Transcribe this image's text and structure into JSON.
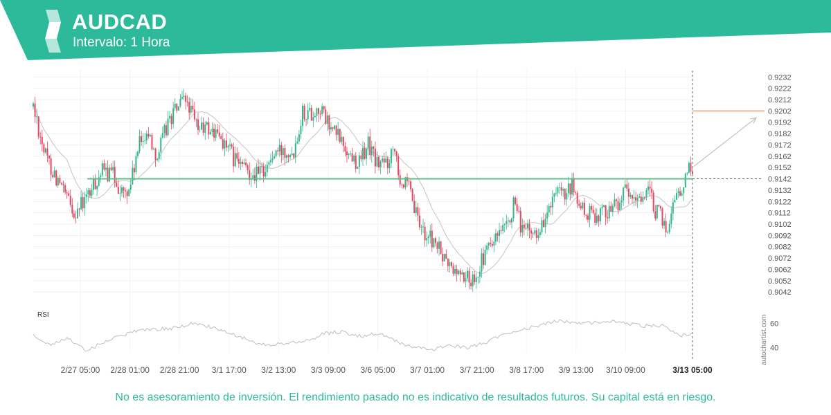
{
  "header": {
    "title": "AUDCAD",
    "interval": "Intervalo: 1 Hora",
    "band_color": "#2cba9a"
  },
  "chart_data": {
    "type": "candlestick",
    "symbol": "AUDCAD",
    "x_tick_labels": [
      "2/27 05:00",
      "2/28 01:00",
      "2/28 21:00",
      "3/1 17:00",
      "3/2 13:00",
      "3/3 09:00",
      "3/6 05:00",
      "3/7 01:00",
      "3/7 21:00",
      "3/8 17:00",
      "3/9 13:00",
      "3/10 09:00",
      "3/13 05:00"
    ],
    "current_time_label": "3/13 05:00",
    "y_tick_labels": [
      "0.9232",
      "0.9222",
      "0.9212",
      "0.9202",
      "0.9192",
      "0.9182",
      "0.9172",
      "0.9162",
      "0.9152",
      "0.9142",
      "0.9132",
      "0.9122",
      "0.9112",
      "0.9102",
      "0.9092",
      "0.9082",
      "0.9072",
      "0.9062",
      "0.9052",
      "0.9042"
    ],
    "ylim": [
      0.9036,
      0.9234
    ],
    "support_level": 0.9142,
    "target_level": 0.9202,
    "price_anchors": [
      [
        0,
        0.9206
      ],
      [
        7,
        0.9162
      ],
      [
        14,
        0.914
      ],
      [
        19,
        0.9124
      ],
      [
        23,
        0.9113
      ],
      [
        28,
        0.912
      ],
      [
        34,
        0.9135
      ],
      [
        38,
        0.9148
      ],
      [
        45,
        0.9146
      ],
      [
        50,
        0.913
      ],
      [
        53,
        0.9128
      ],
      [
        56,
        0.9145
      ],
      [
        60,
        0.9172
      ],
      [
        64,
        0.9185
      ],
      [
        70,
        0.9162
      ],
      [
        76,
        0.9192
      ],
      [
        82,
        0.9207
      ],
      [
        87,
        0.921
      ],
      [
        92,
        0.9188
      ],
      [
        99,
        0.9186
      ],
      [
        106,
        0.9178
      ],
      [
        113,
        0.916
      ],
      [
        120,
        0.915
      ],
      [
        127,
        0.9146
      ],
      [
        131,
        0.9152
      ],
      [
        136,
        0.9163
      ],
      [
        142,
        0.9168
      ],
      [
        147,
        0.9168
      ],
      [
        152,
        0.9202
      ],
      [
        157,
        0.92
      ],
      [
        162,
        0.9204
      ],
      [
        167,
        0.9188
      ],
      [
        172,
        0.918
      ],
      [
        178,
        0.9164
      ],
      [
        184,
        0.9156
      ],
      [
        189,
        0.9173
      ],
      [
        194,
        0.9155
      ],
      [
        200,
        0.9157
      ],
      [
        204,
        0.9174
      ],
      [
        207,
        0.9142
      ],
      [
        212,
        0.9132
      ],
      [
        217,
        0.9104
      ],
      [
        222,
        0.9092
      ],
      [
        227,
        0.9085
      ],
      [
        232,
        0.907
      ],
      [
        237,
        0.9061
      ],
      [
        242,
        0.9057
      ],
      [
        247,
        0.9052
      ],
      [
        252,
        0.9065
      ],
      [
        257,
        0.9082
      ],
      [
        262,
        0.909
      ],
      [
        267,
        0.9097
      ],
      [
        271,
        0.9118
      ],
      [
        276,
        0.9098
      ],
      [
        281,
        0.9093
      ],
      [
        286,
        0.9098
      ],
      [
        291,
        0.9115
      ],
      [
        296,
        0.9128
      ],
      [
        300,
        0.9125
      ],
      [
        304,
        0.9135
      ],
      [
        309,
        0.9115
      ],
      [
        314,
        0.911
      ],
      [
        320,
        0.9112
      ],
      [
        324,
        0.9115
      ],
      [
        329,
        0.912
      ],
      [
        334,
        0.913
      ],
      [
        339,
        0.912
      ],
      [
        343,
        0.9128
      ],
      [
        347,
        0.913
      ],
      [
        351,
        0.9115
      ],
      [
        355,
        0.9106
      ],
      [
        358,
        0.9096
      ],
      [
        362,
        0.913
      ],
      [
        366,
        0.9128
      ],
      [
        369,
        0.9152
      ],
      [
        372,
        0.9153
      ]
    ],
    "rsi": {
      "label": "RSI",
      "ylim": [
        33,
        67
      ],
      "y_tick_labels": [
        "60",
        "40"
      ],
      "anchors": [
        [
          0,
          50
        ],
        [
          10,
          42
        ],
        [
          20,
          48
        ],
        [
          30,
          37
        ],
        [
          40,
          45
        ],
        [
          50,
          50
        ],
        [
          60,
          55
        ],
        [
          70,
          55
        ],
        [
          80,
          56
        ],
        [
          90,
          60
        ],
        [
          100,
          57
        ],
        [
          115,
          50
        ],
        [
          125,
          44
        ],
        [
          135,
          42
        ],
        [
          145,
          44
        ],
        [
          155,
          46
        ],
        [
          165,
          52
        ],
        [
          175,
          53
        ],
        [
          185,
          49
        ],
        [
          195,
          52
        ],
        [
          205,
          45
        ],
        [
          215,
          40
        ],
        [
          225,
          38
        ],
        [
          235,
          42
        ],
        [
          245,
          40
        ],
        [
          255,
          44
        ],
        [
          265,
          51
        ],
        [
          275,
          55
        ],
        [
          285,
          58
        ],
        [
          295,
          62
        ],
        [
          305,
          61
        ],
        [
          315,
          60
        ],
        [
          325,
          62
        ],
        [
          335,
          60
        ],
        [
          345,
          58
        ],
        [
          355,
          58
        ],
        [
          365,
          50
        ],
        [
          372,
          51
        ]
      ]
    }
  },
  "watermark": "autochartist.com",
  "disclaimer": "No es asesoramiento de inversión. El rendimiento pasado no es indicativo de resultados futuros. Su capital está en riesgo.",
  "colors": {
    "brand": "#2cba9a",
    "bull": "#2eb88a",
    "bear": "#e8455f",
    "support_line": "#5bbf86",
    "target_line": "#f08a4b",
    "moving_average": "#c4c4c4",
    "rsi_line": "#bdbdbd"
  }
}
